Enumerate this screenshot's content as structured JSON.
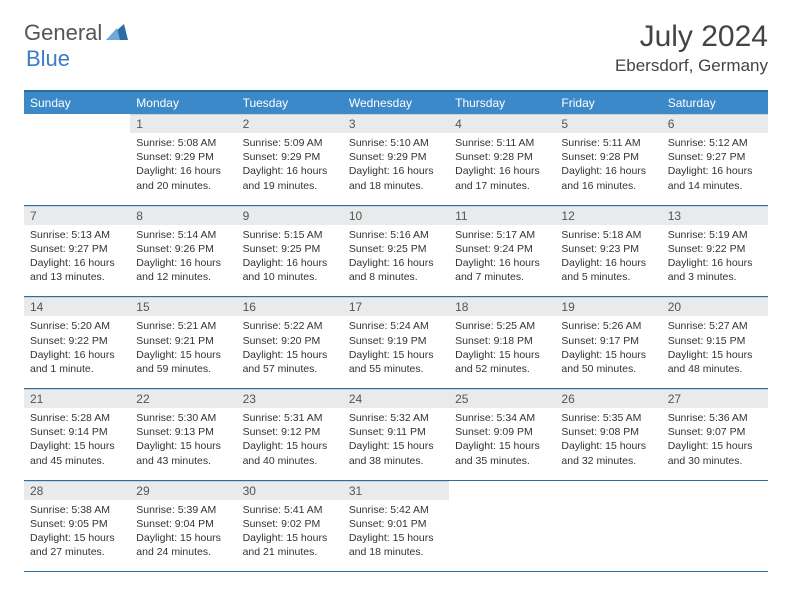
{
  "brand": {
    "part1": "General",
    "part2": "Blue",
    "icon_color": "#2d6da3"
  },
  "title": "July 2024",
  "location": "Ebersdorf, Germany",
  "colors": {
    "header_bg": "#3b89c9",
    "header_border": "#2d6da3",
    "daynum_bg": "#e9eaeb",
    "text": "#333333"
  },
  "weekdays": [
    "Sunday",
    "Monday",
    "Tuesday",
    "Wednesday",
    "Thursday",
    "Friday",
    "Saturday"
  ],
  "weeks": [
    [
      null,
      {
        "n": "1",
        "sr": "5:08 AM",
        "ss": "9:29 PM",
        "dl": "16 hours and 20 minutes."
      },
      {
        "n": "2",
        "sr": "5:09 AM",
        "ss": "9:29 PM",
        "dl": "16 hours and 19 minutes."
      },
      {
        "n": "3",
        "sr": "5:10 AM",
        "ss": "9:29 PM",
        "dl": "16 hours and 18 minutes."
      },
      {
        "n": "4",
        "sr": "5:11 AM",
        "ss": "9:28 PM",
        "dl": "16 hours and 17 minutes."
      },
      {
        "n": "5",
        "sr": "5:11 AM",
        "ss": "9:28 PM",
        "dl": "16 hours and 16 minutes."
      },
      {
        "n": "6",
        "sr": "5:12 AM",
        "ss": "9:27 PM",
        "dl": "16 hours and 14 minutes."
      }
    ],
    [
      {
        "n": "7",
        "sr": "5:13 AM",
        "ss": "9:27 PM",
        "dl": "16 hours and 13 minutes."
      },
      {
        "n": "8",
        "sr": "5:14 AM",
        "ss": "9:26 PM",
        "dl": "16 hours and 12 minutes."
      },
      {
        "n": "9",
        "sr": "5:15 AM",
        "ss": "9:25 PM",
        "dl": "16 hours and 10 minutes."
      },
      {
        "n": "10",
        "sr": "5:16 AM",
        "ss": "9:25 PM",
        "dl": "16 hours and 8 minutes."
      },
      {
        "n": "11",
        "sr": "5:17 AM",
        "ss": "9:24 PM",
        "dl": "16 hours and 7 minutes."
      },
      {
        "n": "12",
        "sr": "5:18 AM",
        "ss": "9:23 PM",
        "dl": "16 hours and 5 minutes."
      },
      {
        "n": "13",
        "sr": "5:19 AM",
        "ss": "9:22 PM",
        "dl": "16 hours and 3 minutes."
      }
    ],
    [
      {
        "n": "14",
        "sr": "5:20 AM",
        "ss": "9:22 PM",
        "dl": "16 hours and 1 minute."
      },
      {
        "n": "15",
        "sr": "5:21 AM",
        "ss": "9:21 PM",
        "dl": "15 hours and 59 minutes."
      },
      {
        "n": "16",
        "sr": "5:22 AM",
        "ss": "9:20 PM",
        "dl": "15 hours and 57 minutes."
      },
      {
        "n": "17",
        "sr": "5:24 AM",
        "ss": "9:19 PM",
        "dl": "15 hours and 55 minutes."
      },
      {
        "n": "18",
        "sr": "5:25 AM",
        "ss": "9:18 PM",
        "dl": "15 hours and 52 minutes."
      },
      {
        "n": "19",
        "sr": "5:26 AM",
        "ss": "9:17 PM",
        "dl": "15 hours and 50 minutes."
      },
      {
        "n": "20",
        "sr": "5:27 AM",
        "ss": "9:15 PM",
        "dl": "15 hours and 48 minutes."
      }
    ],
    [
      {
        "n": "21",
        "sr": "5:28 AM",
        "ss": "9:14 PM",
        "dl": "15 hours and 45 minutes."
      },
      {
        "n": "22",
        "sr": "5:30 AM",
        "ss": "9:13 PM",
        "dl": "15 hours and 43 minutes."
      },
      {
        "n": "23",
        "sr": "5:31 AM",
        "ss": "9:12 PM",
        "dl": "15 hours and 40 minutes."
      },
      {
        "n": "24",
        "sr": "5:32 AM",
        "ss": "9:11 PM",
        "dl": "15 hours and 38 minutes."
      },
      {
        "n": "25",
        "sr": "5:34 AM",
        "ss": "9:09 PM",
        "dl": "15 hours and 35 minutes."
      },
      {
        "n": "26",
        "sr": "5:35 AM",
        "ss": "9:08 PM",
        "dl": "15 hours and 32 minutes."
      },
      {
        "n": "27",
        "sr": "5:36 AM",
        "ss": "9:07 PM",
        "dl": "15 hours and 30 minutes."
      }
    ],
    [
      {
        "n": "28",
        "sr": "5:38 AM",
        "ss": "9:05 PM",
        "dl": "15 hours and 27 minutes."
      },
      {
        "n": "29",
        "sr": "5:39 AM",
        "ss": "9:04 PM",
        "dl": "15 hours and 24 minutes."
      },
      {
        "n": "30",
        "sr": "5:41 AM",
        "ss": "9:02 PM",
        "dl": "15 hours and 21 minutes."
      },
      {
        "n": "31",
        "sr": "5:42 AM",
        "ss": "9:01 PM",
        "dl": "15 hours and 18 minutes."
      },
      null,
      null,
      null
    ]
  ],
  "labels": {
    "sunrise": "Sunrise:",
    "sunset": "Sunset:",
    "daylight": "Daylight:"
  }
}
